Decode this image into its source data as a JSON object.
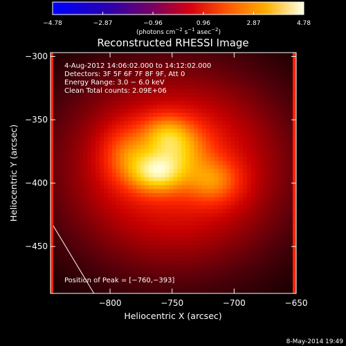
{
  "chart_data": {
    "type": "heatmap",
    "title": "Reconstructed RHESSI Image",
    "xlabel": "Heliocentric X (arcsec)",
    "ylabel": "Heliocentric Y (arcsec)",
    "xlim": [
      -848,
      -650
    ],
    "ylim": [
      -487,
      -297
    ],
    "xticks": [
      -800,
      -750,
      -700,
      -650
    ],
    "xtick_labels": [
      "−800",
      "−750",
      "−700",
      "−650"
    ],
    "yticks": [
      -300,
      -350,
      -400,
      -450
    ],
    "ytick_labels": [
      "−300",
      "−350",
      "−400",
      "−450"
    ],
    "colorbar": {
      "ticks": [
        -4.78,
        -2.87,
        -0.96,
        0.96,
        2.87,
        4.78
      ],
      "tick_labels": [
        "−4.78",
        "−2.87",
        "−0.96",
        "0.96",
        "2.87",
        "4.78"
      ],
      "unit_prefix": "(photons cm",
      "unit_exp1": "−2",
      "unit_mid": " s",
      "unit_exp2": "−1",
      "unit_mid2": " asec",
      "unit_exp3": "−2",
      "unit_suffix": ")"
    },
    "info_lines": [
      " 4-Aug-2012 14:06:02.000 to 14:12:02.000",
      "Detectors: 3F 5F 6F 7F 8F 9F, Att 0",
      "Energy Range: 3.0 − 6.0 keV",
      "Clean    Total counts: 2.09E+06"
    ],
    "peak_label": "Position of Peak = [−760,−393]",
    "peak_position": [
      -760,
      -393
    ],
    "sources": [
      {
        "x": -762,
        "y": -392,
        "sx": 15,
        "sy": 11,
        "amp": 1.0
      },
      {
        "x": -745,
        "y": -372,
        "sx": 17,
        "sy": 14,
        "amp": 0.7
      },
      {
        "x": -717,
        "y": -398,
        "sx": 15,
        "sy": 12,
        "amp": 0.62
      },
      {
        "x": -785,
        "y": -378,
        "sx": 14,
        "sy": 15,
        "amp": 0.55
      },
      {
        "x": -756,
        "y": -360,
        "sx": 13,
        "sy": 10,
        "amp": 0.5
      },
      {
        "x": -748,
        "y": -388,
        "sx": 52,
        "sy": 44,
        "amp": 0.6
      }
    ],
    "limb_line": {
      "x": [
        -848,
        -813
      ],
      "y": [
        -430,
        -487
      ]
    },
    "footer_date": "8-May-2014 19:49"
  }
}
